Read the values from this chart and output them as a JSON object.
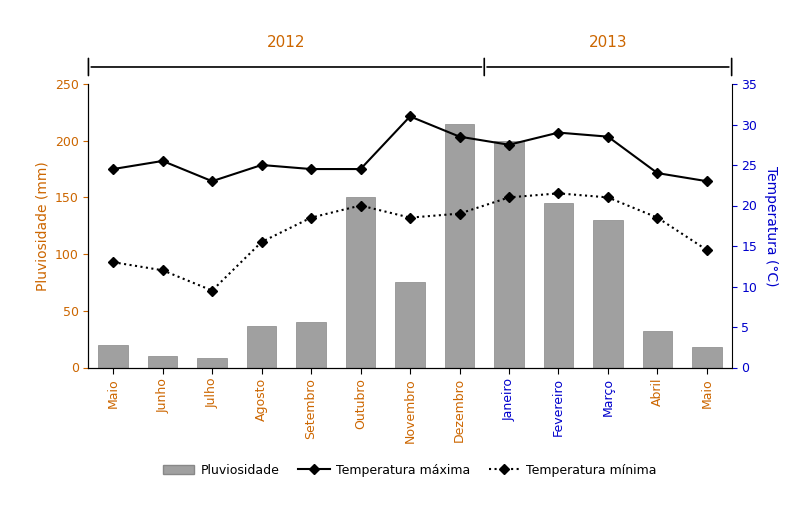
{
  "months": [
    "Maio",
    "Junho",
    "Julho",
    "Agosto",
    "Setembro",
    "Outubro",
    "Novembro",
    "Dezembro",
    "Janeiro",
    "Fevereiro",
    "Março",
    "Abril",
    "Maio"
  ],
  "pluviosidade": [
    20,
    10,
    8,
    37,
    40,
    150,
    75,
    215,
    200,
    145,
    130,
    32,
    18
  ],
  "temp_max_c": [
    24.5,
    25.5,
    23.0,
    25.0,
    24.5,
    24.5,
    31.0,
    28.5,
    27.5,
    29.0,
    28.5,
    24.0,
    23.0
  ],
  "temp_min_c": [
    13.0,
    12.0,
    9.5,
    15.5,
    18.5,
    20.0,
    18.5,
    19.0,
    21.0,
    21.5,
    21.0,
    18.5,
    14.5
  ],
  "bar_color": "#a0a0a0",
  "bar_edge_color": "#888888",
  "line_color": "#000000",
  "ylabel_left": "Pluviosidade (mm)",
  "ylabel_right": "Temperatura (°C)",
  "ylim_left": [
    0,
    250
  ],
  "ylim_right": [
    0,
    35
  ],
  "yticks_left": [
    0,
    50,
    100,
    150,
    200,
    250
  ],
  "yticks_right": [
    0,
    5,
    10,
    15,
    20,
    25,
    30,
    35
  ],
  "year_2012": "2012",
  "year_2013": "2013",
  "legend_bar": "Pluviosidade",
  "legend_max": "Temperatura máxima",
  "legend_min": "Temperatura mínima",
  "year_color": "#cc6600",
  "month_colors": [
    "#cc6600",
    "#cc6600",
    "#cc6600",
    "#cc6600",
    "#cc6600",
    "#cc6600",
    "#cc6600",
    "#cc6600",
    "#0000cc",
    "#0000cc",
    "#0000cc",
    "#cc6600",
    "#cc6600"
  ],
  "ylabel_left_color": "#cc6600",
  "ylabel_right_color": "#0000cc",
  "n_months": 13,
  "split_index": 8
}
